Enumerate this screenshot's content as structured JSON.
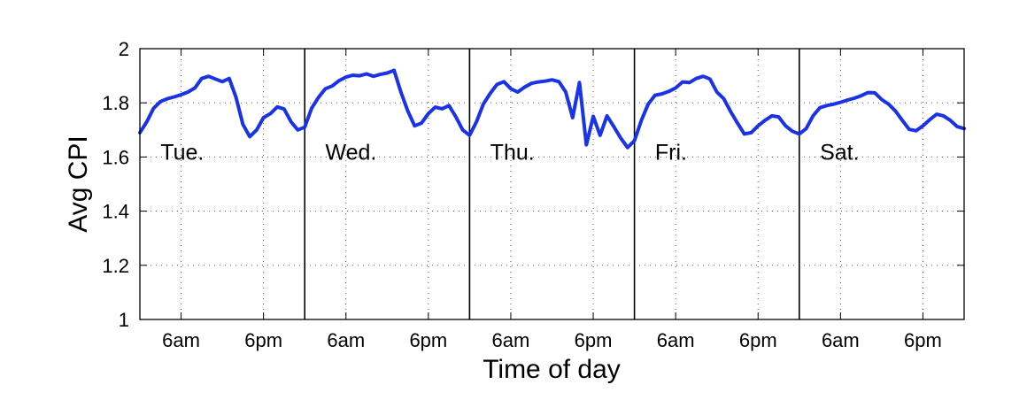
{
  "chart_data": {
    "type": "line",
    "xlabel": "Time of day",
    "ylabel": "Avg CPI",
    "ylim": [
      1,
      2
    ],
    "yticks": [
      1,
      1.2,
      1.4,
      1.6,
      1.8,
      2
    ],
    "ytick_labels": [
      "1",
      "1.2",
      "1.4",
      "1.6",
      "1.8",
      "2"
    ],
    "xlim": [
      0,
      120
    ],
    "xticks": [
      6,
      18,
      30,
      42,
      54,
      66,
      78,
      90,
      102,
      114
    ],
    "xtick_labels": [
      "6am",
      "6pm",
      "6am",
      "6pm",
      "6am",
      "6pm",
      "6am",
      "6pm",
      "6am",
      "6pm"
    ],
    "day_boundaries": [
      24,
      48,
      72,
      96
    ],
    "days": [
      {
        "label": "Tue.",
        "x": 3,
        "y": 1.62
      },
      {
        "label": "Wed.",
        "x": 27,
        "y": 1.62
      },
      {
        "label": "Thu.",
        "x": 51,
        "y": 1.62
      },
      {
        "label": "Fri.",
        "x": 75,
        "y": 1.62
      },
      {
        "label": "Sat.",
        "x": 99,
        "y": 1.62
      }
    ],
    "grid": true,
    "series_color": "#1a33e6",
    "series": [
      {
        "x": [
          0,
          1,
          2,
          3,
          4,
          5,
          6,
          7,
          8,
          9,
          10,
          11,
          12,
          13,
          14,
          15,
          16,
          17,
          18,
          19,
          20,
          21,
          22,
          23,
          24,
          25,
          26,
          27,
          28,
          29,
          30,
          31,
          32,
          33,
          34,
          35,
          36,
          37,
          38,
          39,
          40,
          41,
          42,
          43,
          44,
          45,
          46,
          47,
          48,
          49,
          50,
          51,
          52,
          53,
          54,
          55,
          56,
          57,
          58,
          59,
          60,
          61,
          62,
          63,
          64,
          65,
          66,
          67,
          68,
          69,
          70,
          71,
          72,
          73,
          74,
          75,
          76,
          77,
          78,
          79,
          80,
          81,
          82,
          83,
          84,
          85,
          86,
          87,
          88,
          89,
          90,
          91,
          92,
          93,
          94,
          95,
          96,
          97,
          98,
          99,
          100,
          101,
          102,
          103,
          104,
          105,
          106,
          107,
          108,
          109,
          110,
          111,
          112,
          113,
          114,
          115,
          116,
          117,
          118,
          119,
          120
        ],
        "values": [
          1.69,
          1.73,
          1.78,
          1.805,
          1.815,
          1.822,
          1.83,
          1.84,
          1.855,
          1.89,
          1.898,
          1.888,
          1.878,
          1.89,
          1.82,
          1.72,
          1.675,
          1.7,
          1.745,
          1.76,
          1.785,
          1.777,
          1.73,
          1.7,
          1.71,
          1.78,
          1.82,
          1.852,
          1.862,
          1.882,
          1.895,
          1.902,
          1.9,
          1.907,
          1.898,
          1.905,
          1.91,
          1.92,
          1.84,
          1.77,
          1.715,
          1.725,
          1.76,
          1.784,
          1.778,
          1.79,
          1.748,
          1.7,
          1.68,
          1.73,
          1.795,
          1.835,
          1.868,
          1.878,
          1.852,
          1.84,
          1.858,
          1.872,
          1.877,
          1.88,
          1.885,
          1.878,
          1.84,
          1.745,
          1.875,
          1.645,
          1.75,
          1.68,
          1.752,
          1.712,
          1.67,
          1.635,
          1.66,
          1.735,
          1.795,
          1.828,
          1.833,
          1.842,
          1.855,
          1.877,
          1.875,
          1.89,
          1.898,
          1.888,
          1.84,
          1.815,
          1.768,
          1.725,
          1.685,
          1.69,
          1.715,
          1.735,
          1.752,
          1.748,
          1.715,
          1.695,
          1.685,
          1.705,
          1.752,
          1.782,
          1.79,
          1.795,
          1.802,
          1.81,
          1.817,
          1.826,
          1.838,
          1.837,
          1.812,
          1.795,
          1.77,
          1.735,
          1.702,
          1.697,
          1.715,
          1.738,
          1.758,
          1.752,
          1.735,
          1.712,
          1.705
        ]
      }
    ]
  }
}
